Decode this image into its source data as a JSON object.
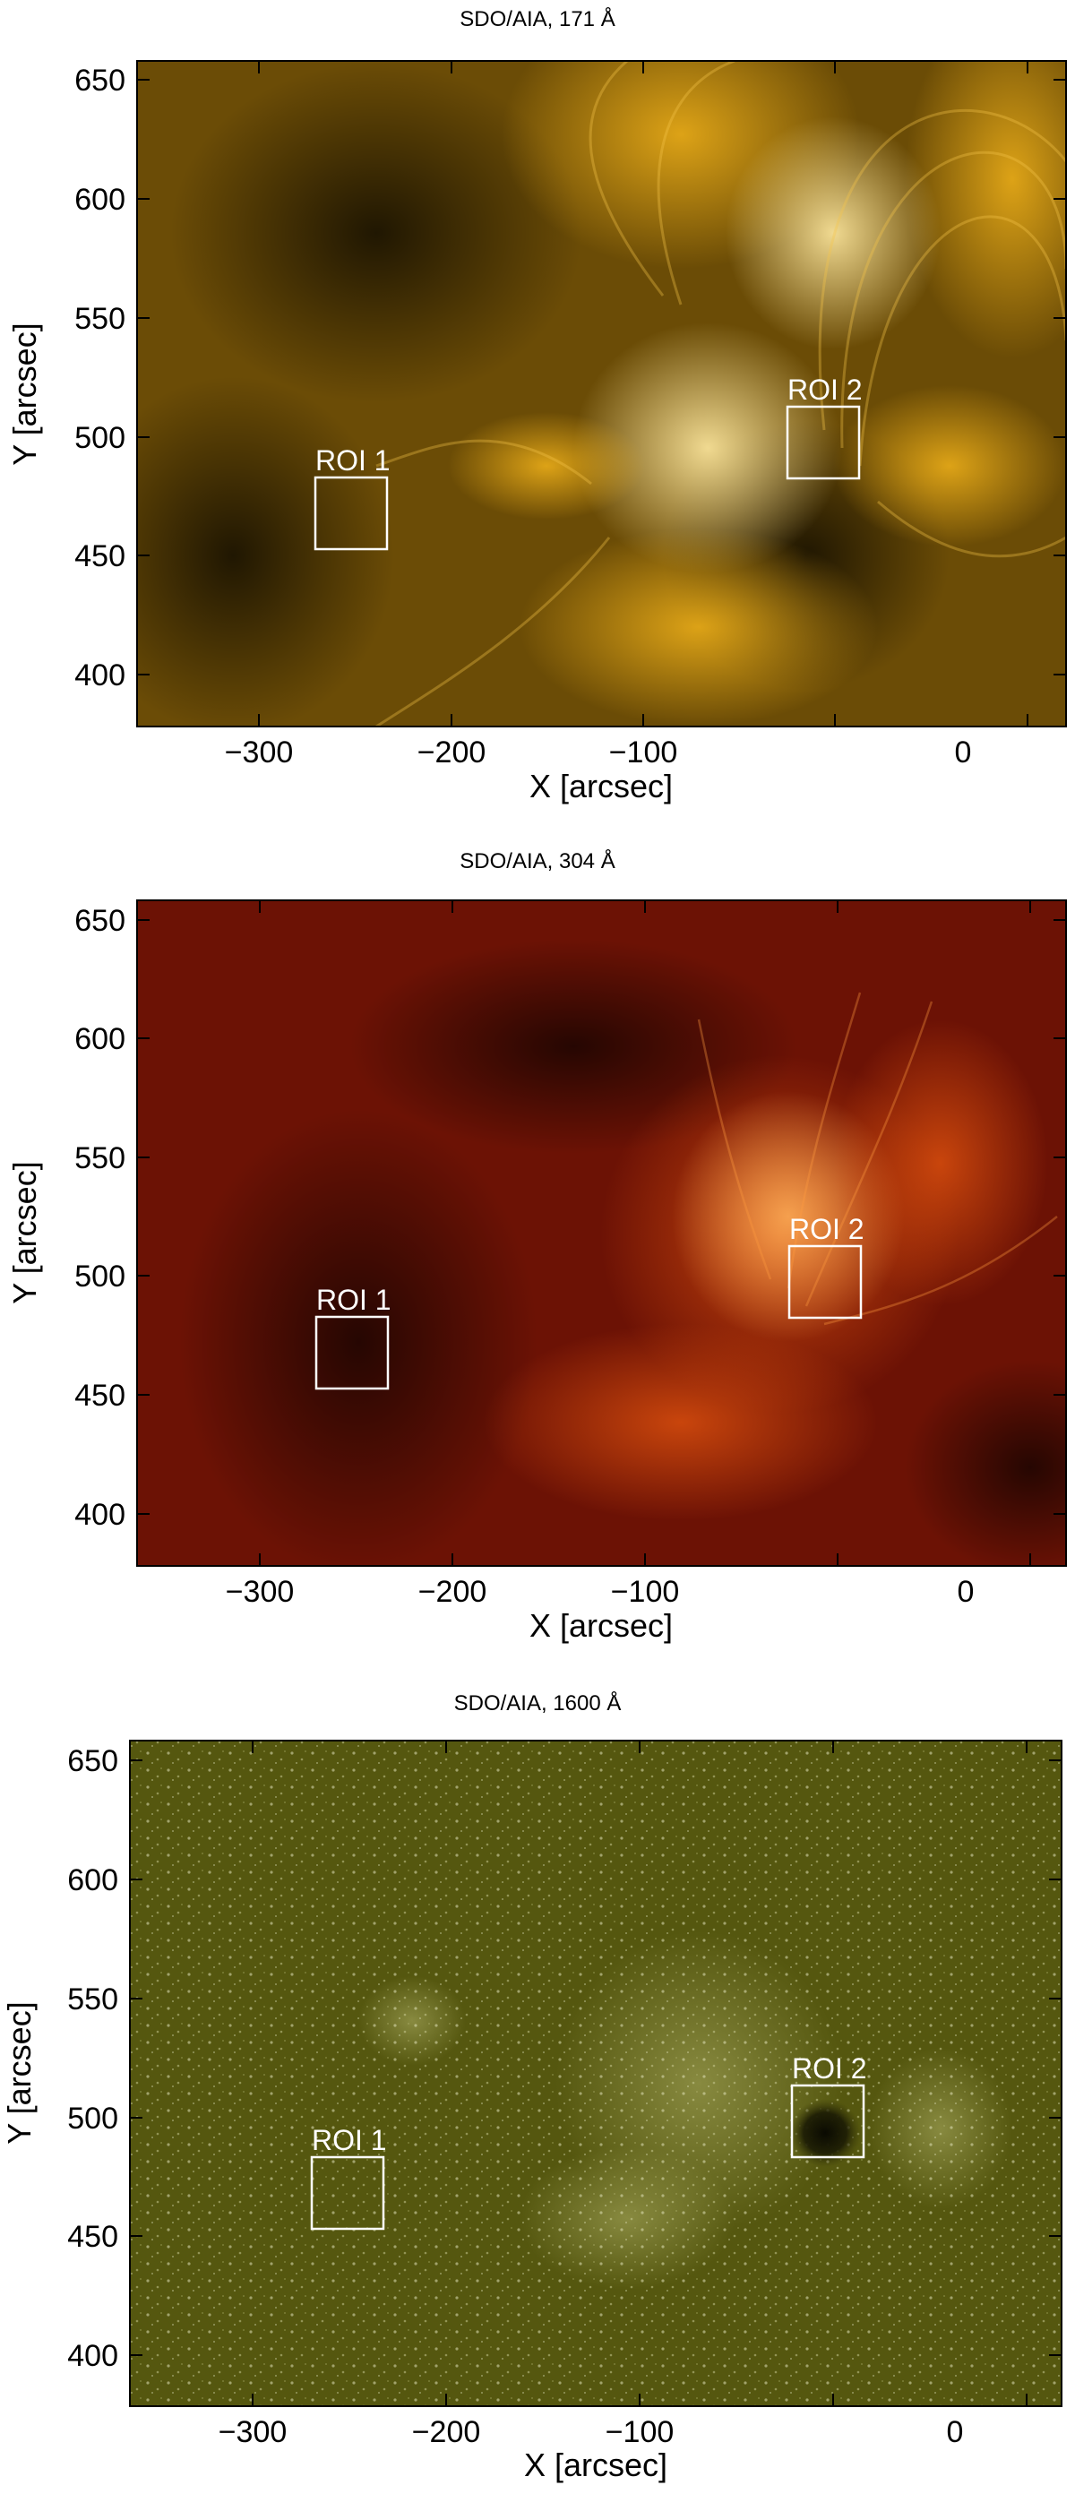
{
  "panels": [
    {
      "title": "SDO/AIA, 171 Å",
      "xlabel": "X [arcsec]",
      "ylabel": "Y [arcsec]",
      "xticks": [
        "−300",
        "−200",
        "−100",
        "0"
      ],
      "yticks": [
        "650",
        "600",
        "550",
        "500",
        "450",
        "400"
      ],
      "rois": [
        {
          "label": "ROI 1"
        },
        {
          "label": "ROI 2"
        }
      ],
      "colormap": {
        "dark": "#1e1503",
        "mid": "#8a6206",
        "bright": "#f1b21a",
        "highlight": "#ffe9a0"
      }
    },
    {
      "title": "SDO/AIA, 304 Å",
      "xlabel": "X [arcsec]",
      "ylabel": "Y [arcsec]",
      "xticks": [
        "−300",
        "−200",
        "−100",
        "0"
      ],
      "yticks": [
        "650",
        "600",
        "550",
        "500",
        "450",
        "400"
      ],
      "rois": [
        {
          "label": "ROI 1"
        },
        {
          "label": "ROI 2"
        }
      ],
      "colormap": {
        "dark": "#2a0402",
        "mid": "#8a1606",
        "bright": "#e0520e",
        "highlight": "#ffb15a"
      }
    },
    {
      "title": "SDO/AIA, 1600 Å",
      "xlabel": "X [arcsec]",
      "ylabel": "Y [arcsec]",
      "xticks": [
        "−300",
        "−200",
        "−100",
        "0"
      ],
      "yticks": [
        "650",
        "600",
        "550",
        "500",
        "450",
        "400"
      ],
      "rois": [
        {
          "label": "ROI 1"
        },
        {
          "label": "ROI 2"
        }
      ],
      "colormap": {
        "dark": "#3a3a08",
        "mid": "#5d5f14",
        "bright": "#9ea055",
        "highlight": "#e6e9c4"
      }
    }
  ]
}
